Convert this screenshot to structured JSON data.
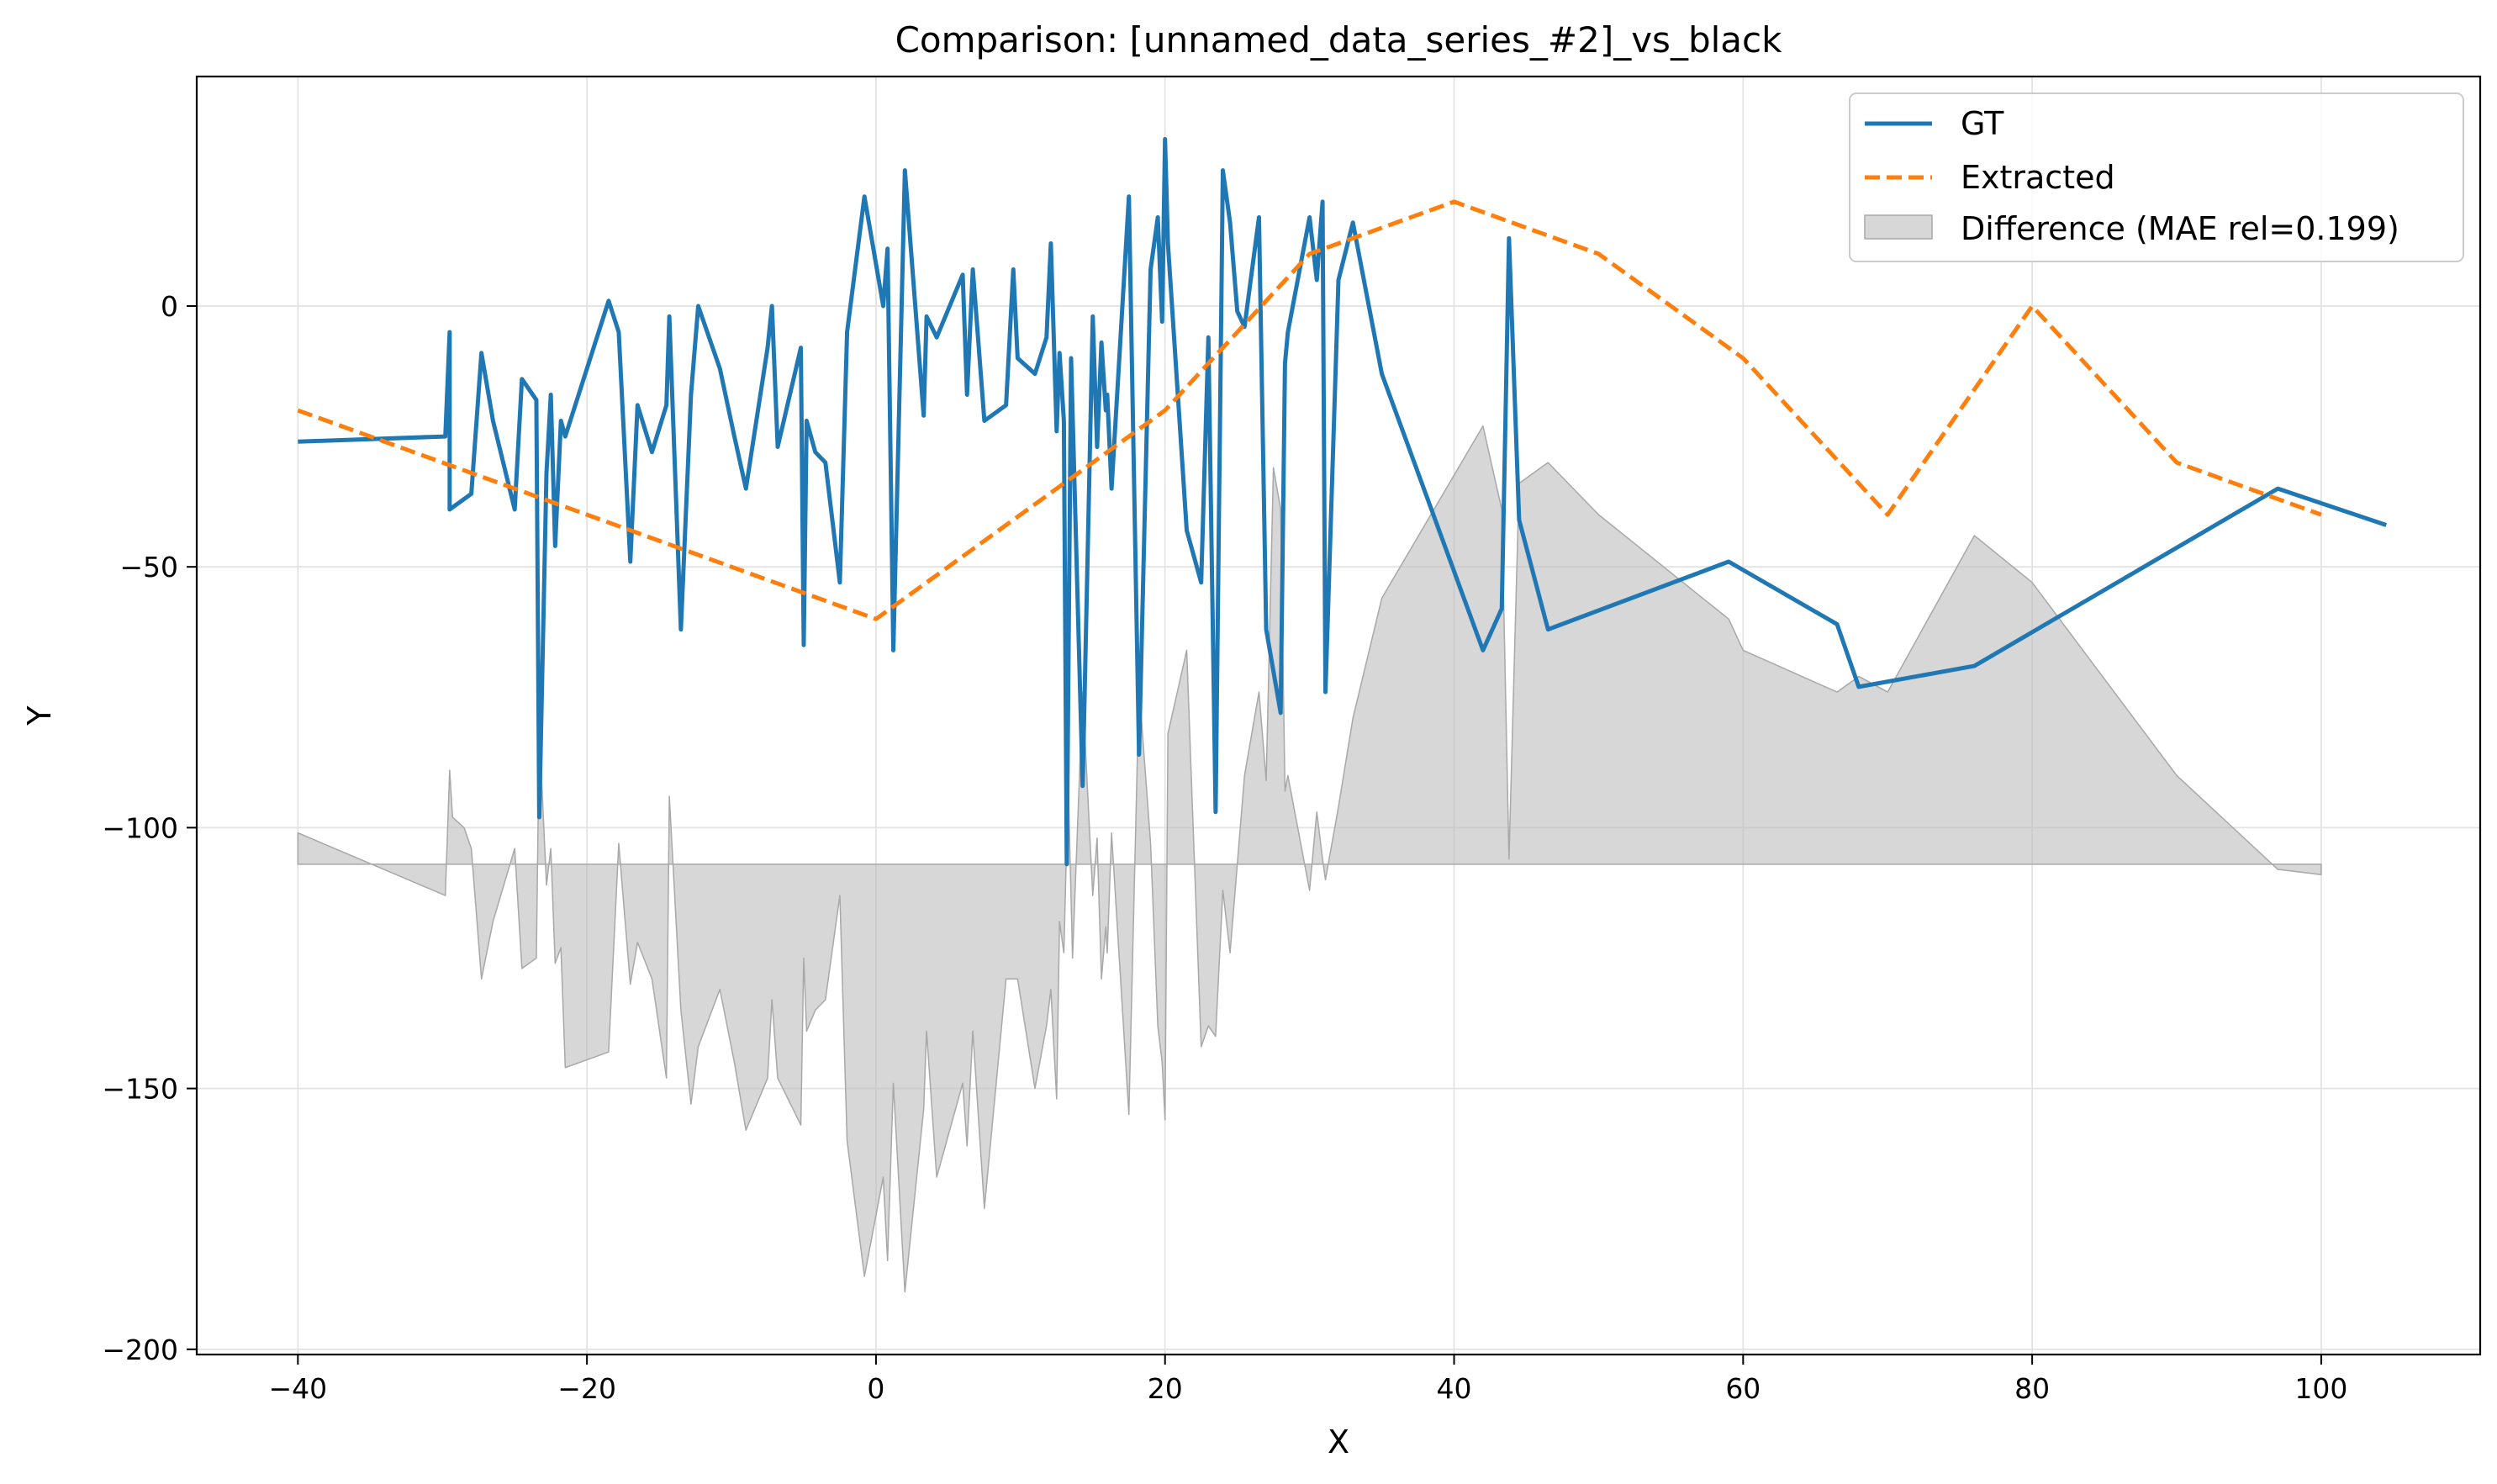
{
  "chart_data": {
    "type": "line",
    "title": "Comparison: [unnamed_data_series_#2]_vs_black",
    "xlabel": "X",
    "ylabel": "Y",
    "xlim": [
      -47,
      111
    ],
    "ylim": [
      -201,
      44
    ],
    "xticks": [
      -40,
      -20,
      0,
      20,
      40,
      60,
      80,
      100
    ],
    "yticks": [
      0,
      -50,
      -100,
      -150,
      -200
    ],
    "xtick_labels": [
      "−40",
      "−20",
      "0",
      "20",
      "40",
      "60",
      "80",
      "100"
    ],
    "ytick_labels": [
      "0",
      "−50",
      "−100",
      "−150",
      "−200"
    ],
    "grid": true,
    "legend_position": "top-right",
    "legend": {
      "gt": "GT",
      "extracted": "Extracted",
      "difference": "Difference (MAE rel=0.199)"
    },
    "colors": {
      "gt": "#1f77b4",
      "extracted": "#ff7f0e",
      "difference": "#bdbdbd"
    },
    "series": [
      {
        "name": "GT",
        "style": "solid",
        "x": [
          -40,
          -29.8,
          -29.5,
          -29.5,
          -28,
          -27.3,
          -26.5,
          -25,
          -24.5,
          -23.5,
          -23.3,
          -22.8,
          -22.5,
          -22.2,
          -21.8,
          -21.5,
          -18.5,
          -17.8,
          -17,
          -16.5,
          -15.5,
          -14.5,
          -14.3,
          -13.5,
          -12.8,
          -12.3,
          -10.8,
          -9.8,
          -9,
          -7.5,
          -7.2,
          -6.8,
          -5.2,
          -5,
          -4.8,
          -4.2,
          -3.5,
          -2.5,
          -2,
          -0.8,
          0.5,
          0.8,
          1.2,
          2,
          3.3,
          3.5,
          4.2,
          6,
          6.3,
          6.7,
          7.5,
          9,
          9.5,
          9.8,
          11,
          11.8,
          12.1,
          12.5,
          12.7,
          13,
          13.2,
          13.5,
          14.3,
          15,
          15.3,
          15.6,
          15.9,
          16,
          16.3,
          17.5,
          18.2,
          19,
          19.5,
          19.8,
          20,
          20.2,
          21.5,
          22.5,
          23,
          23.5,
          24,
          24.5,
          25,
          25.5,
          26.5,
          27,
          28,
          28.3,
          28.5,
          30,
          30.5,
          30.9,
          31.1,
          32,
          33,
          35,
          42,
          43.3,
          43.8,
          44.5,
          46.5,
          59,
          66.5,
          68,
          76,
          97,
          104.5
        ],
        "y": [
          -26,
          -25,
          -5,
          -39,
          -36,
          -9,
          -22,
          -39,
          -14,
          -18,
          -98,
          -32,
          -17,
          -46,
          -22,
          -25,
          1,
          -5,
          -49,
          -19,
          -28,
          -19,
          -2,
          -62,
          -17,
          0,
          -12,
          -25,
          -35,
          -8,
          0,
          -27,
          -8,
          -65,
          -22,
          -28,
          -30,
          -53,
          -5,
          21,
          0,
          11,
          -66,
          26,
          -21,
          -2,
          -6,
          6,
          -17,
          7,
          -22,
          -19,
          7,
          -10,
          -13,
          -6,
          12,
          -24,
          -9,
          -22,
          -107,
          -10,
          -92,
          -2,
          -27,
          -7,
          -20,
          -17,
          -35,
          21,
          -86,
          7,
          17,
          -3,
          32,
          12,
          -43,
          -53,
          -6,
          -97,
          26,
          16,
          -1,
          -4,
          17,
          -62,
          -78,
          -11,
          -5,
          17,
          5,
          20,
          -74,
          5,
          16,
          -13,
          -66,
          -58,
          13,
          -41,
          -62,
          -49,
          -61,
          -73,
          -69,
          -35,
          -42
        ]
      },
      {
        "name": "Extracted",
        "style": "dashed",
        "x": [
          -40,
          -30,
          -20,
          -10,
          0,
          10,
          20,
          30,
          40,
          50,
          60,
          70,
          80,
          90,
          100
        ],
        "y": [
          -20,
          -30,
          -40,
          -50,
          -60,
          -40,
          -20,
          10,
          20,
          10,
          -10,
          -40,
          0,
          -30,
          -40
        ]
      }
    ],
    "difference": {
      "baseline": -107,
      "x": [
        -40,
        -29.8,
        -29.5,
        -29.3,
        -28.5,
        -28,
        -27.3,
        -26.5,
        -25,
        -24.5,
        -23.5,
        -23.3,
        -22.8,
        -22.5,
        -22.2,
        -21.8,
        -21.5,
        -18.5,
        -17.8,
        -17,
        -16.5,
        -15.5,
        -14.5,
        -14.3,
        -13.5,
        -12.8,
        -12.3,
        -10.8,
        -9.8,
        -9,
        -7.5,
        -7.2,
        -6.8,
        -5.2,
        -5,
        -4.8,
        -4.2,
        -3.5,
        -2.5,
        -2,
        -0.8,
        0.5,
        0.8,
        1.2,
        2,
        3.3,
        3.5,
        4.2,
        6,
        6.3,
        6.7,
        7.5,
        9,
        9.5,
        9.8,
        11,
        11.8,
        12.1,
        12.5,
        12.7,
        13,
        13.3,
        13.6,
        14.3,
        15,
        15.3,
        15.6,
        15.9,
        16,
        16.3,
        17.5,
        18.2,
        19,
        19.5,
        19.8,
        20,
        20.2,
        21.5,
        22.5,
        23,
        23.5,
        24,
        24.5,
        25,
        25.5,
        26.5,
        27,
        27.5,
        28,
        28.3,
        28.5,
        30,
        30.5,
        30.9,
        31.1,
        32,
        33,
        35,
        42,
        43.3,
        43.8,
        44.5,
        46.5,
        50,
        59,
        60,
        66.5,
        68,
        70,
        76,
        80,
        90,
        97,
        100
      ],
      "y": [
        -101,
        -113,
        -89,
        -98,
        -100,
        -104,
        -129,
        -118,
        -104,
        -127,
        -125,
        -81,
        -111,
        -104,
        -126,
        -123,
        -146,
        -143,
        -103,
        -130,
        -122,
        -129,
        -148,
        -94,
        -135,
        -153,
        -142,
        -131,
        -145,
        -158,
        -148,
        -133,
        -148,
        -157,
        -125,
        -139,
        -135,
        -133,
        -113,
        -160,
        -186,
        -167,
        -183,
        -149,
        -189,
        -154,
        -139,
        -167,
        -149,
        -161,
        -139,
        -173,
        -129,
        -129,
        -129,
        -150,
        -138,
        -131,
        -152,
        -118,
        -124,
        -91,
        -125,
        -74,
        -113,
        -102,
        -129,
        -119,
        -124,
        -101,
        -155,
        -73,
        -103,
        -138,
        -145,
        -156,
        -82,
        -66,
        -142,
        -138,
        -140,
        -112,
        -124,
        -107,
        -90,
        -74,
        -91,
        -31,
        -39,
        -93,
        -90,
        -112,
        -97,
        -106,
        -110,
        -96,
        -79,
        -56,
        -23,
        -39,
        -106,
        -34,
        -30,
        -40,
        -60,
        -66,
        -74,
        -71,
        -74,
        -44,
        -53,
        -90,
        -108,
        -109
      ]
    }
  }
}
